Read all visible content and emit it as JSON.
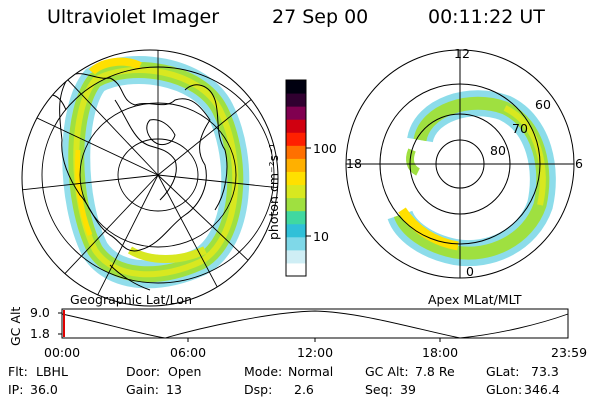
{
  "header": {
    "instrument": "Ultraviolet Imager",
    "date": "27 Sep 00",
    "time": "00:11:22 UT"
  },
  "colorbar": {
    "label": "photon cm⁻²s⁻¹",
    "ticks": [
      "100",
      "10"
    ],
    "scale": "log",
    "colors": [
      "#ffffff",
      "#cfeef5",
      "#7fd8e8",
      "#30c0d8",
      "#40d8a0",
      "#9fe040",
      "#d8e820",
      "#ffe000",
      "#ffb000",
      "#ff7000",
      "#ff2000",
      "#d00010",
      "#800050",
      "#300030",
      "#000010"
    ]
  },
  "left_panel": {
    "caption": "Geographic Lat/Lon"
  },
  "right_panel": {
    "caption": "Apex MLat/MLT",
    "mlt_labels": [
      "12",
      "18",
      "6",
      "0"
    ],
    "mlat_labels": [
      "60",
      "70",
      "80"
    ]
  },
  "timeline": {
    "ylabel": "GC Alt",
    "yticks": [
      "9.0",
      "1.8"
    ],
    "xticks": [
      "00:00",
      "06:00",
      "12:00",
      "18:00",
      "23:59"
    ],
    "marker_color": "#e00000"
  },
  "info": {
    "flt_label": "Flt:",
    "flt_value": "LBHL",
    "ip_label": "IP:",
    "ip_value": "36.0",
    "door_label": "Door:",
    "door_value": "Open",
    "gain_label": "Gain:",
    "gain_value": "13",
    "mode_label": "Mode:",
    "mode_value": "Normal",
    "dsp_label": "Dsp:",
    "dsp_value": "2.6",
    "gcalt_label": "GC Alt:",
    "gcalt_value": "7.8 Re",
    "seq_label": "Seq:",
    "seq_value": "39",
    "glat_label": "GLat:",
    "glat_value": "73.3",
    "glon_label": "GLon:",
    "glon_value": "346.4"
  }
}
